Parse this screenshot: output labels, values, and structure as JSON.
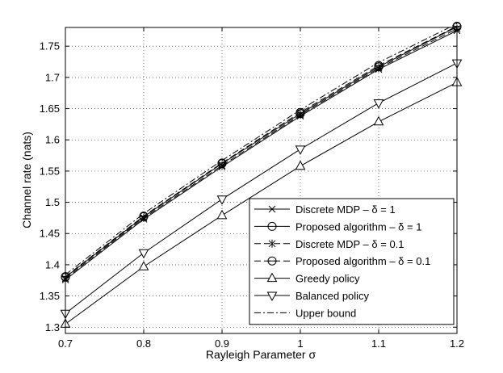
{
  "chart_data": {
    "type": "line",
    "xlabel": "Rayleigh Parameter σ",
    "ylabel": "Channel rate (nats)",
    "xlim": [
      0.7,
      1.2
    ],
    "ylim": [
      1.29,
      1.78
    ],
    "xticks": [
      0.7,
      0.8,
      0.9,
      1.0,
      1.1,
      1.2
    ],
    "xtick_labels": [
      "0.7",
      "0.8",
      "0.9",
      "1",
      "1.1",
      "1.2"
    ],
    "yticks": [
      1.3,
      1.35,
      1.4,
      1.45,
      1.5,
      1.55,
      1.6,
      1.65,
      1.7,
      1.75
    ],
    "ytick_labels": [
      "1.3",
      "1.35",
      "1.4",
      "1.45",
      "1.5",
      "1.55",
      "1.6",
      "1.65",
      "1.7",
      "1.75"
    ],
    "grid": true,
    "legend_position": "lower-right",
    "x": [
      0.7,
      0.8,
      0.9,
      1.0,
      1.1,
      1.2
    ],
    "series": [
      {
        "name": "Discrete MDP – δ = 1",
        "marker": "x",
        "dash": "solid",
        "values": [
          1.376,
          1.473,
          1.557,
          1.638,
          1.713,
          1.775
        ]
      },
      {
        "name": "Proposed algorithm – δ = 1",
        "marker": "circle",
        "dash": "solid",
        "values": [
          1.38,
          1.477,
          1.562,
          1.642,
          1.717,
          1.781
        ]
      },
      {
        "name": "Discrete MDP – δ = 0.1",
        "marker": "star",
        "dash": "dashed",
        "values": [
          1.378,
          1.475,
          1.559,
          1.64,
          1.715,
          1.778
        ]
      },
      {
        "name": "Proposed algorithm – δ = 0.1",
        "marker": "circle-minus",
        "dash": "dashed",
        "values": [
          1.381,
          1.478,
          1.563,
          1.644,
          1.719,
          1.782
        ]
      },
      {
        "name": "Greedy policy",
        "marker": "triangle-up",
        "dash": "solid",
        "values": [
          1.305,
          1.397,
          1.479,
          1.558,
          1.629,
          1.692
        ]
      },
      {
        "name": "Balanced policy",
        "marker": "triangle-down",
        "dash": "solid",
        "values": [
          1.322,
          1.419,
          1.505,
          1.585,
          1.659,
          1.723
        ]
      },
      {
        "name": "Upper bound",
        "marker": "none",
        "dash": "dashdot",
        "values": [
          1.384,
          1.482,
          1.567,
          1.648,
          1.724,
          1.786
        ]
      }
    ]
  }
}
